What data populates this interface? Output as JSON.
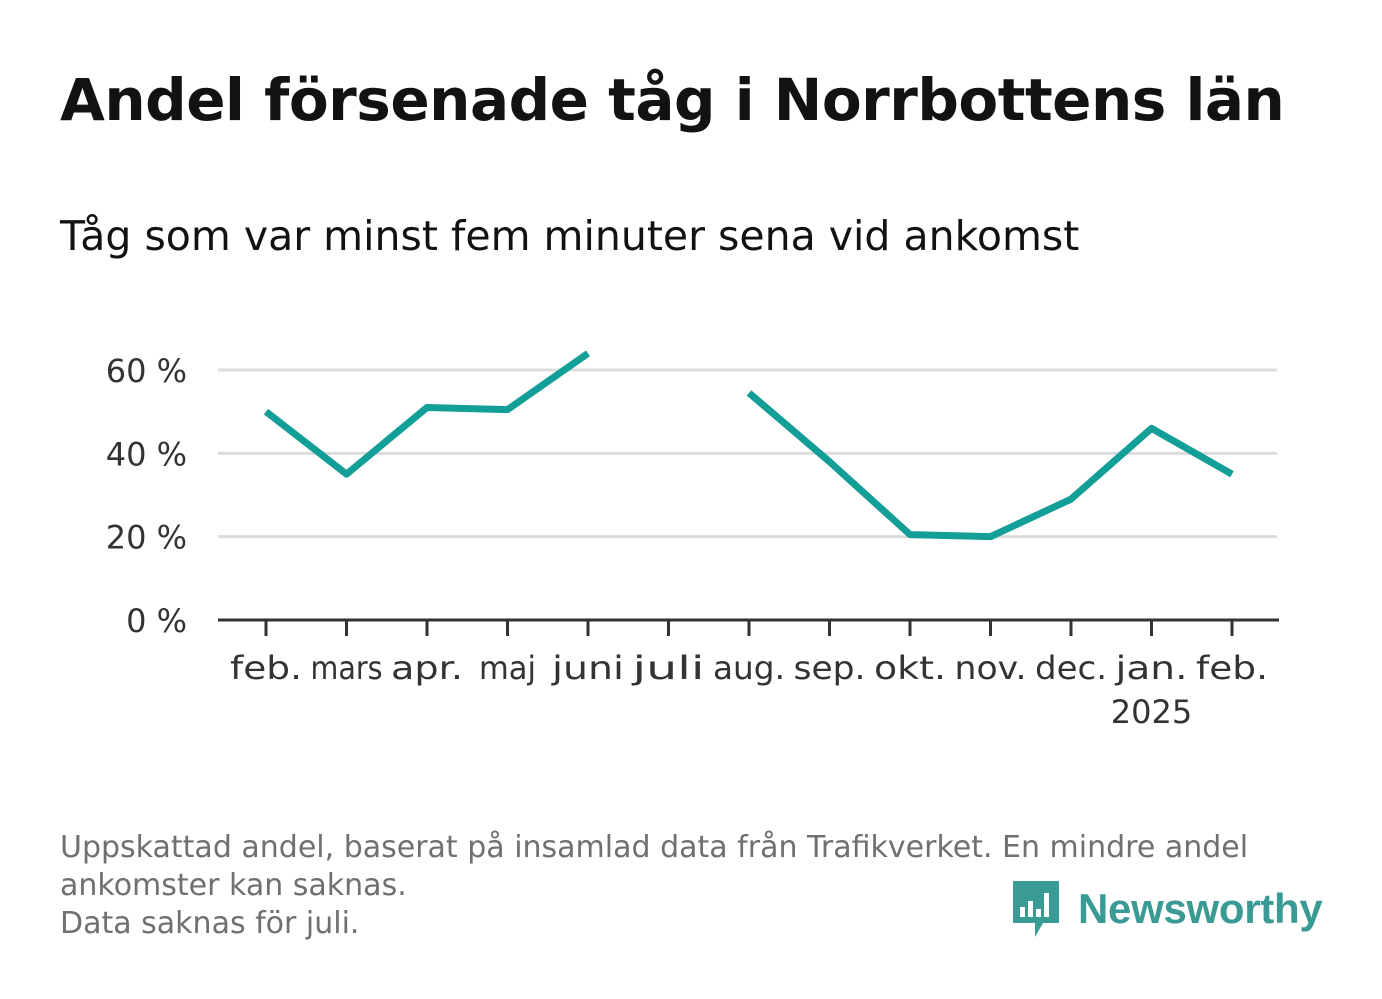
{
  "title": "Andel försenade tåg i Norrbottens län",
  "subtitle": "Tåg som var minst fem minuter sena vid ankomst",
  "footer": {
    "notes": [
      "Uppskattad andel, baserat på insamlad data från Trafikverket. En mindre andel ankomster kan saknas.",
      "Data saknas för juli."
    ]
  },
  "logo": {
    "text": "Newsworthy",
    "icon": "newsworthy-chart-icon",
    "color": "#3a9a94"
  },
  "colors": {
    "line": "#139e97",
    "grid": "#dcdcdc",
    "axis": "#333333",
    "tick_text": "#333333"
  },
  "chart_data": {
    "type": "line",
    "categories": [
      "feb.",
      "mars",
      "apr.",
      "maj",
      "juni",
      "juli",
      "aug.",
      "sep.",
      "okt.",
      "nov.",
      "dec.",
      "jan.",
      "feb."
    ],
    "year_labels": [
      "",
      "",
      "",
      "",
      "",
      "",
      "",
      "",
      "",
      "",
      "",
      "2025",
      ""
    ],
    "series": [
      {
        "values": [
          50,
          35,
          51,
          50.5,
          64,
          null,
          54.5,
          38,
          20.5,
          20,
          29,
          46,
          35
        ]
      }
    ],
    "y_ticks": [
      0,
      20,
      40,
      60
    ],
    "y_tick_labels": [
      "0 %",
      "20 %",
      "40 %",
      "60 %"
    ],
    "ylim": [
      0,
      60
    ],
    "grid": true,
    "xlabel": "",
    "ylabel": ""
  }
}
